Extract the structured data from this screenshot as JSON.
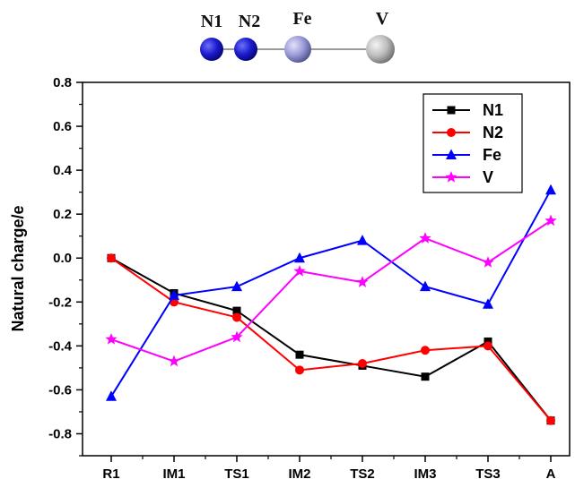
{
  "molecule": {
    "atoms": [
      {
        "label": "N1",
        "color": "#1414c8"
      },
      {
        "label": "N2",
        "color": "#1414c8"
      },
      {
        "label": "Fe",
        "color": "#8c8cd2"
      },
      {
        "label": "V",
        "color": "#b4b4b4"
      }
    ]
  },
  "chart_data": {
    "type": "line",
    "title": "",
    "xlabel": "",
    "ylabel": "Natural charge/e",
    "ylim": [
      -0.9,
      0.8
    ],
    "yticks": [
      "-0.8",
      "-0.6",
      "-0.4",
      "-0.2",
      "0.0",
      "0.2",
      "0.4",
      "0.6",
      "0.8"
    ],
    "categories": [
      "R1",
      "IM1",
      "TS1",
      "IM2",
      "TS2",
      "IM3",
      "TS3",
      "A"
    ],
    "grid": false,
    "legend_position": "top-right",
    "series": [
      {
        "name": "N1",
        "color": "#000000",
        "marker": "square",
        "values": [
          0.0,
          -0.16,
          -0.24,
          -0.44,
          -0.49,
          -0.54,
          -0.38,
          -0.74
        ]
      },
      {
        "name": "N2",
        "color": "#ff0000",
        "marker": "circle",
        "values": [
          0.0,
          -0.2,
          -0.27,
          -0.51,
          -0.48,
          -0.42,
          -0.4,
          -0.74
        ]
      },
      {
        "name": "Fe",
        "color": "#0000ff",
        "marker": "triangle",
        "values": [
          -0.63,
          -0.17,
          -0.13,
          0.0,
          0.08,
          -0.13,
          -0.21,
          0.31
        ]
      },
      {
        "name": "V",
        "color": "#ff00ff",
        "marker": "star",
        "values": [
          -0.37,
          -0.47,
          -0.36,
          -0.06,
          -0.11,
          0.09,
          -0.02,
          0.17
        ]
      }
    ]
  }
}
